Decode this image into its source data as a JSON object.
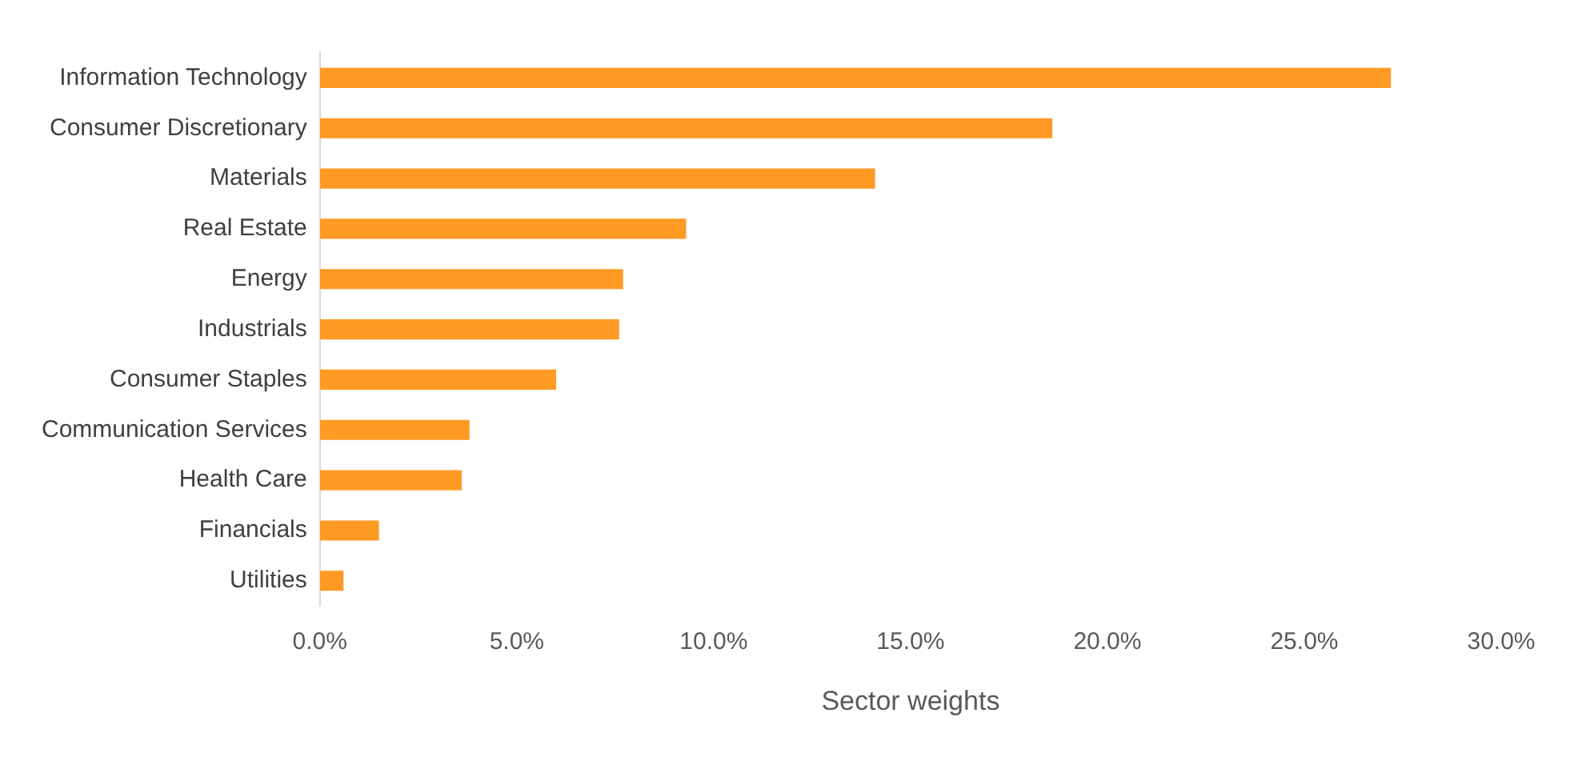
{
  "chart_data": {
    "type": "bar",
    "orientation": "horizontal",
    "xlabel": "Sector weights",
    "categories": [
      "Information Technology",
      "Consumer Discretionary",
      "Materials",
      "Real Estate",
      "Energy",
      "Industrials",
      "Consumer Staples",
      "Communication Services",
      "Health Care",
      "Financials",
      "Utilities"
    ],
    "values": [
      27.2,
      18.6,
      14.1,
      9.3,
      7.7,
      7.6,
      6.0,
      3.8,
      3.6,
      1.5,
      0.6
    ],
    "color": "#ff9a24",
    "xlim": [
      0,
      30
    ],
    "xticks": [
      {
        "value": 0,
        "label": "0.0%"
      },
      {
        "value": 5,
        "label": "5.0%"
      },
      {
        "value": 10,
        "label": "10.0%"
      },
      {
        "value": 15,
        "label": "15.0%"
      },
      {
        "value": 20,
        "label": "20.0%"
      },
      {
        "value": 25,
        "label": "25.0%"
      },
      {
        "value": 30,
        "label": "30.0%"
      }
    ],
    "grid": false,
    "legend": false
  }
}
